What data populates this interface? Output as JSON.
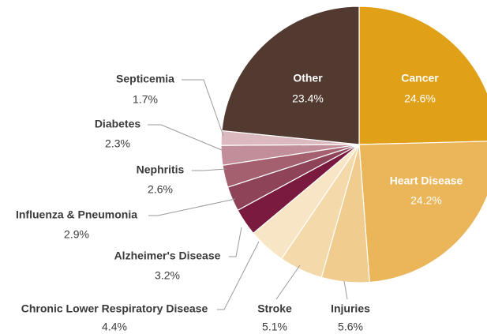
{
  "chart_data": {
    "type": "pie",
    "categories": [
      "Cancer",
      "Heart Disease",
      "Injuries",
      "Stroke",
      "Chronic Lower Respiratory Disease",
      "Alzheimer's Disease",
      "Influenza & Pneumonia",
      "Nephritis",
      "Diabetes",
      "Septicemia",
      "Other"
    ],
    "values": [
      24.6,
      24.2,
      5.6,
      5.1,
      4.4,
      3.2,
      2.9,
      2.6,
      2.3,
      1.7,
      23.4
    ],
    "value_labels": [
      "24.6%",
      "24.2%",
      "5.6%",
      "5.1%",
      "4.4%",
      "3.2%",
      "2.9%",
      "2.6%",
      "2.3%",
      "1.7%",
      "23.4%"
    ],
    "colors": [
      "#e0a118",
      "#ebb65a",
      "#f0cc8f",
      "#f4d9aa",
      "#f8e5c5",
      "#7b1a3f",
      "#8e4358",
      "#a4606f",
      "#c18e99",
      "#dbb9bf",
      "#523a30"
    ]
  }
}
